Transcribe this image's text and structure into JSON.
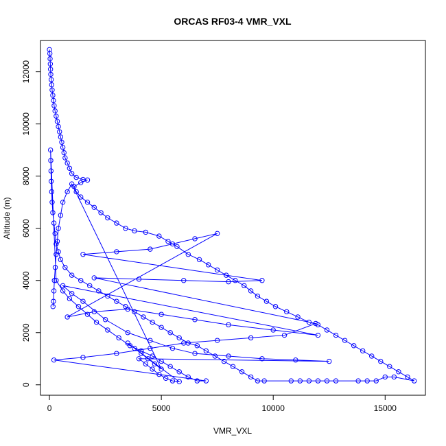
{
  "chart_data": {
    "type": "scatter",
    "title": "ORCAS RF03-4 VMR_VXL",
    "xlabel": "VMR_VXL",
    "ylabel": "Altitude (m)",
    "xlim": [
      -400,
      16800
    ],
    "ylim": [
      -400,
      13200
    ],
    "xticks": [
      0,
      5000,
      10000,
      15000
    ],
    "yticks": [
      0,
      2000,
      4000,
      6000,
      8000,
      10000,
      12000
    ],
    "xtick_labels": [
      "0",
      "5000",
      "10000",
      "15000"
    ],
    "ytick_labels": [
      "0",
      "2000",
      "4000",
      "6000",
      "8000",
      "10000",
      "12000"
    ],
    "grid": false,
    "legend": "none",
    "series": [
      {
        "marker": "open-circle",
        "line": true,
        "color": "#0000ff",
        "points": [
          [
            0,
            12850
          ],
          [
            20,
            12700
          ],
          [
            30,
            12500
          ],
          [
            40,
            12300
          ],
          [
            50,
            12100
          ],
          [
            60,
            11900
          ],
          [
            80,
            11700
          ],
          [
            100,
            11500
          ],
          [
            120,
            11300
          ],
          [
            150,
            11100
          ],
          [
            180,
            10900
          ],
          [
            210,
            10700
          ],
          [
            250,
            10500
          ],
          [
            300,
            10300
          ],
          [
            350,
            10100
          ],
          [
            400,
            9900
          ],
          [
            450,
            9700
          ],
          [
            500,
            9500
          ],
          [
            550,
            9300
          ],
          [
            600,
            9100
          ],
          [
            650,
            8900
          ],
          [
            700,
            8700
          ],
          [
            800,
            8500
          ],
          [
            900,
            8300
          ],
          [
            1000,
            8100
          ],
          [
            1200,
            7950
          ],
          [
            1500,
            7870
          ],
          [
            1700,
            7850
          ],
          [
            1400,
            7750
          ],
          [
            1100,
            7600
          ],
          [
            1200,
            7400
          ],
          [
            1400,
            7200
          ],
          [
            1700,
            7000
          ],
          [
            2000,
            6800
          ],
          [
            2300,
            6600
          ],
          [
            2600,
            6400
          ],
          [
            3000,
            6200
          ],
          [
            3400,
            6000
          ],
          [
            3800,
            5900
          ],
          [
            4300,
            5850
          ],
          [
            4900,
            5700
          ],
          [
            5300,
            5500
          ],
          [
            5700,
            5300
          ],
          [
            6200,
            5000
          ],
          [
            6700,
            4800
          ],
          [
            7100,
            4600
          ],
          [
            7500,
            4400
          ],
          [
            7900,
            4200
          ],
          [
            8300,
            4000
          ],
          [
            8700,
            3800
          ],
          [
            9000,
            3600
          ],
          [
            9300,
            3400
          ],
          [
            9700,
            3200
          ],
          [
            10100,
            3000
          ],
          [
            10600,
            2800
          ],
          [
            11100,
            2600
          ],
          [
            11600,
            2400
          ],
          [
            12000,
            2300
          ],
          [
            12400,
            2100
          ],
          [
            12800,
            1900
          ],
          [
            13200,
            1700
          ],
          [
            13600,
            1500
          ],
          [
            14000,
            1300
          ],
          [
            14400,
            1100
          ],
          [
            14800,
            900
          ],
          [
            15200,
            700
          ],
          [
            15600,
            500
          ],
          [
            16000,
            300
          ],
          [
            16300,
            150
          ],
          [
            15400,
            300
          ],
          [
            15000,
            300
          ],
          [
            14600,
            150
          ],
          [
            14200,
            150
          ],
          [
            13800,
            150
          ],
          [
            12800,
            150
          ],
          [
            12400,
            150
          ],
          [
            12000,
            150
          ],
          [
            11600,
            150
          ],
          [
            11200,
            150
          ],
          [
            10800,
            150
          ],
          [
            9600,
            150
          ],
          [
            9300,
            150
          ],
          [
            9000,
            300
          ],
          [
            8600,
            500
          ],
          [
            8200,
            700
          ],
          [
            7800,
            900
          ],
          [
            7400,
            1100
          ],
          [
            7000,
            1300
          ],
          [
            6600,
            1500
          ],
          [
            6200,
            1600
          ],
          [
            5800,
            1800
          ],
          [
            5400,
            2000
          ],
          [
            5000,
            2200
          ],
          [
            4600,
            2400
          ],
          [
            4200,
            2600
          ],
          [
            3800,
            2800
          ],
          [
            3400,
            3000
          ],
          [
            3000,
            3200
          ],
          [
            2600,
            3400
          ],
          [
            2200,
            3600
          ],
          [
            1800,
            3800
          ],
          [
            1400,
            4000
          ],
          [
            1000,
            4200
          ],
          [
            700,
            4500
          ],
          [
            500,
            4800
          ],
          [
            400,
            5100
          ],
          [
            300,
            5400
          ],
          [
            250,
            5800
          ],
          [
            200,
            6200
          ],
          [
            150,
            6600
          ],
          [
            120,
            7000
          ],
          [
            100,
            7400
          ],
          [
            80,
            7800
          ],
          [
            70,
            8200
          ],
          [
            60,
            8600
          ],
          [
            50,
            9000
          ],
          [
            300,
            4000
          ],
          [
            600,
            3600
          ],
          [
            900,
            3300
          ],
          [
            1300,
            3000
          ],
          [
            1700,
            2700
          ],
          [
            2100,
            2400
          ],
          [
            2600,
            2100
          ],
          [
            3100,
            1800
          ],
          [
            3600,
            1500
          ],
          [
            4100,
            1300
          ],
          [
            4600,
            1100
          ],
          [
            5000,
            900
          ],
          [
            5400,
            700
          ],
          [
            5800,
            500
          ],
          [
            6200,
            300
          ],
          [
            6600,
            150
          ],
          [
            7000,
            150
          ],
          [
            200,
            950
          ],
          [
            1500,
            1050
          ],
          [
            3000,
            1200
          ],
          [
            4500,
            1400
          ],
          [
            6000,
            1600
          ],
          [
            7500,
            1700
          ],
          [
            9000,
            1800
          ],
          [
            10500,
            1900
          ],
          [
            11900,
            2350
          ],
          [
            2000,
            4100
          ],
          [
            4000,
            4050
          ],
          [
            6000,
            4000
          ],
          [
            8000,
            3950
          ],
          [
            9500,
            4000
          ],
          [
            1500,
            5000
          ],
          [
            3000,
            5100
          ],
          [
            4500,
            5200
          ],
          [
            5500,
            5400
          ],
          [
            6500,
            5600
          ],
          [
            7500,
            5800
          ],
          [
            800,
            2600
          ],
          [
            2000,
            2800
          ],
          [
            3500,
            2900
          ],
          [
            5000,
            2700
          ],
          [
            6500,
            2500
          ],
          [
            8000,
            2300
          ],
          [
            10000,
            2100
          ],
          [
            12000,
            1900
          ],
          [
            600,
            3800
          ],
          [
            1000,
            3500
          ],
          [
            1500,
            3200
          ],
          [
            2500,
            2500
          ],
          [
            3500,
            2000
          ],
          [
            4500,
            1700
          ],
          [
            5500,
            1400
          ],
          [
            6500,
            1200
          ],
          [
            8000,
            1100
          ],
          [
            9500,
            1000
          ],
          [
            11000,
            950
          ],
          [
            12500,
            900
          ],
          [
            4000,
            1000
          ],
          [
            4300,
            800
          ],
          [
            4600,
            600
          ],
          [
            4900,
            400
          ],
          [
            5200,
            250
          ],
          [
            5500,
            150
          ],
          [
            5800,
            120
          ],
          [
            3500,
            1600
          ],
          [
            3800,
            1400
          ],
          [
            4100,
            1200
          ],
          [
            4400,
            1000
          ],
          [
            4700,
            800
          ],
          [
            5000,
            600
          ],
          [
            1000,
            7700
          ],
          [
            800,
            7400
          ],
          [
            600,
            7000
          ],
          [
            500,
            6500
          ],
          [
            400,
            6000
          ],
          [
            350,
            5500
          ],
          [
            300,
            5000
          ],
          [
            260,
            4500
          ],
          [
            220,
            4000
          ],
          [
            200,
            3600
          ],
          [
            180,
            3200
          ],
          [
            160,
            3000
          ]
        ]
      }
    ]
  }
}
